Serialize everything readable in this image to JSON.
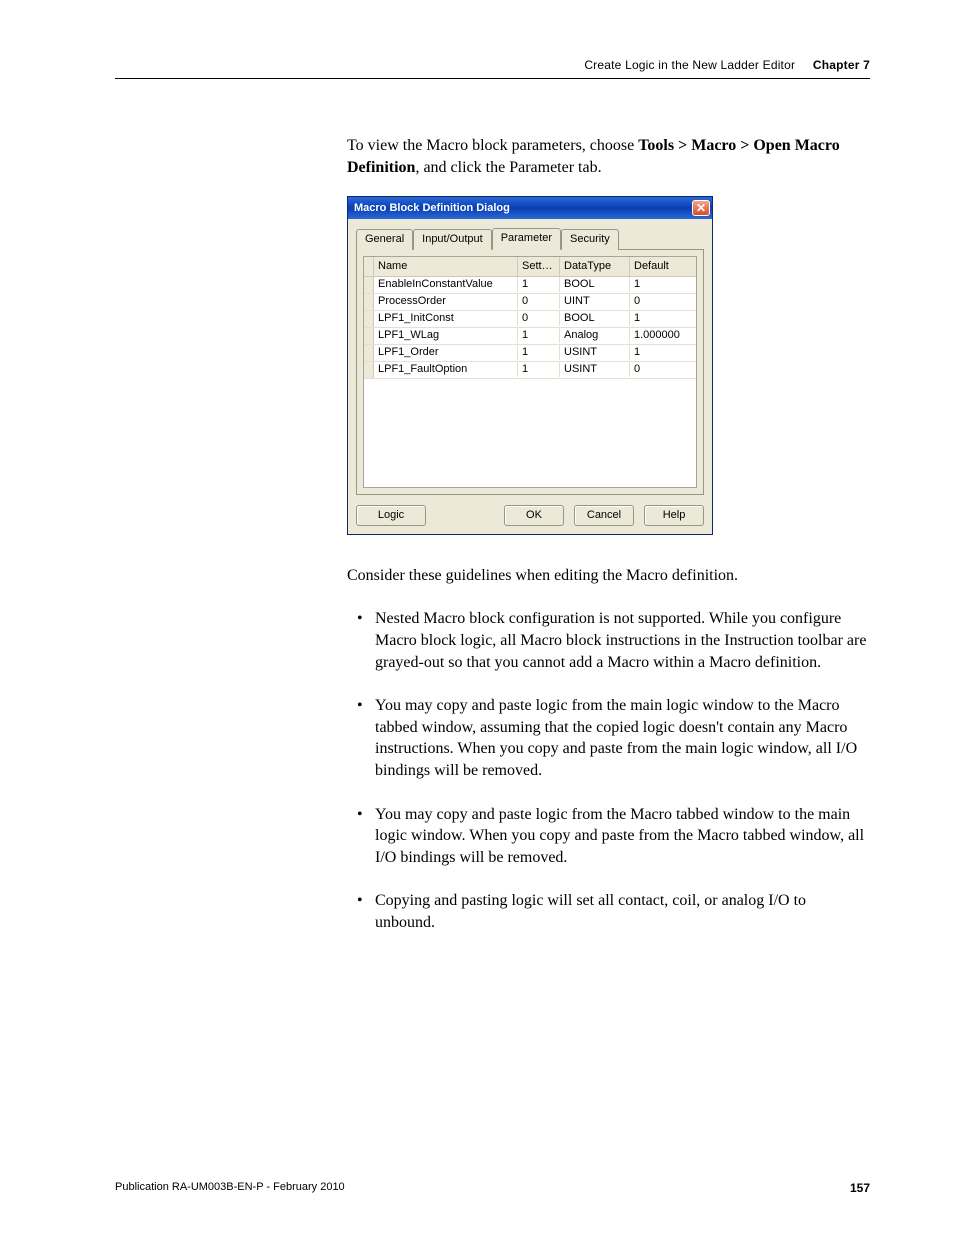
{
  "header": {
    "breadcrumb": "Create Logic in the New Ladder Editor",
    "chapter": "Chapter 7"
  },
  "intro": {
    "pre": "To view the Macro block parameters, choose ",
    "bold1": "Tools > Macro > Open Macro Definition",
    "post": ", and click the Parameter tab."
  },
  "dialog": {
    "title": "Macro Block Definition Dialog",
    "tabs": {
      "general": "General",
      "io": "Input/Output",
      "parameter": "Parameter",
      "security": "Security"
    },
    "columns": {
      "name": "Name",
      "sett": "Sett…",
      "datatype": "DataType",
      "default": "Default"
    },
    "rows": [
      {
        "name": "EnableInConstantValue",
        "sett": "1",
        "type": "BOOL",
        "def": "1"
      },
      {
        "name": "ProcessOrder",
        "sett": "0",
        "type": "UINT",
        "def": "0"
      },
      {
        "name": "LPF1_InitConst",
        "sett": "0",
        "type": "BOOL",
        "def": "1"
      },
      {
        "name": "LPF1_WLag",
        "sett": "1",
        "type": "Analog",
        "def": "1.000000"
      },
      {
        "name": "LPF1_Order",
        "sett": "1",
        "type": "USINT",
        "def": "1"
      },
      {
        "name": "LPF1_FaultOption",
        "sett": "1",
        "type": "USINT",
        "def": "0"
      }
    ],
    "buttons": {
      "logic": "Logic",
      "ok": "OK",
      "cancel": "Cancel",
      "help": "Help"
    }
  },
  "para2": "Consider these guidelines when editing the Macro definition.",
  "bullets": [
    "Nested Macro block configuration is not supported. While you configure Macro block logic, all Macro block instructions in the Instruction toolbar are grayed-out so that you cannot add a Macro within a Macro definition.",
    "You may copy and paste logic from the main logic window to the Macro tabbed window, assuming that the copied logic doesn't contain any Macro instructions. When you copy and paste from the main logic window, all I/O bindings will be removed.",
    "You may copy and paste logic from the Macro tabbed window to the main logic window. When you copy and paste from the Macro tabbed window, all I/O bindings will be removed.",
    "Copying and pasting logic will set all contact, coil, or analog I/O to unbound."
  ],
  "footer": {
    "pub": "Publication RA-UM003B-EN-P - February 2010",
    "page": "157"
  }
}
